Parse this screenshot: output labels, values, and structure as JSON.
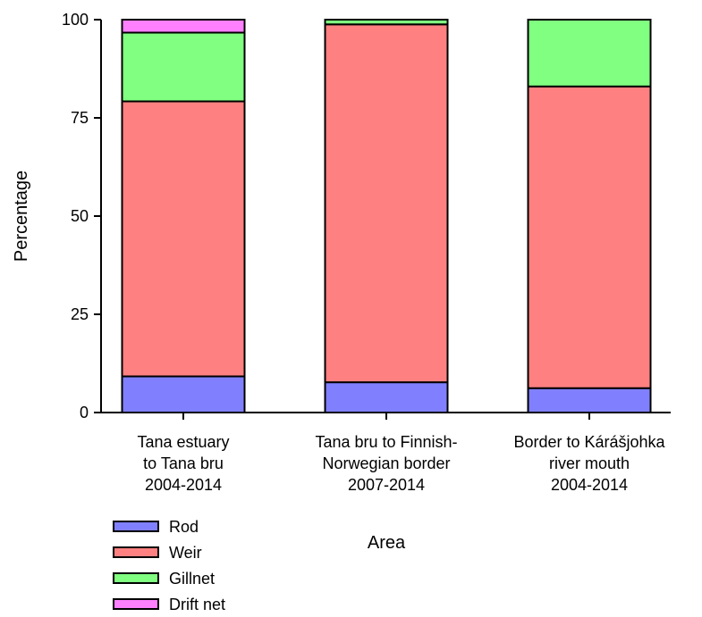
{
  "chart_data": {
    "type": "bar",
    "stacked": true,
    "title": "",
    "xlabel": "Area",
    "ylabel": "Percentage",
    "ylim": [
      0,
      100
    ],
    "yticks": [
      "0",
      "25",
      "50",
      "75",
      "100"
    ],
    "grid": false,
    "legend_position": "bottom-left",
    "categories": [
      [
        "Tana estuary",
        "to Tana bru",
        "2004-2014"
      ],
      [
        "Tana bru to Finnish-",
        "Norwegian border",
        "2007-2014"
      ],
      [
        "Border to Kárášjohka",
        "river mouth",
        "2004-2014"
      ]
    ],
    "series": [
      {
        "name": "Rod",
        "color": "#8080ff",
        "values": [
          9.2,
          7.7,
          6.2
        ]
      },
      {
        "name": "Weir",
        "color": "#ff8080",
        "values": [
          70.0,
          91.1,
          76.8
        ]
      },
      {
        "name": "Gillnet",
        "color": "#80ff80",
        "values": [
          17.5,
          1.2,
          17.0
        ]
      },
      {
        "name": "Drift net",
        "color": "#ff80ff",
        "values": [
          3.3,
          0.0,
          0.0
        ]
      }
    ]
  }
}
